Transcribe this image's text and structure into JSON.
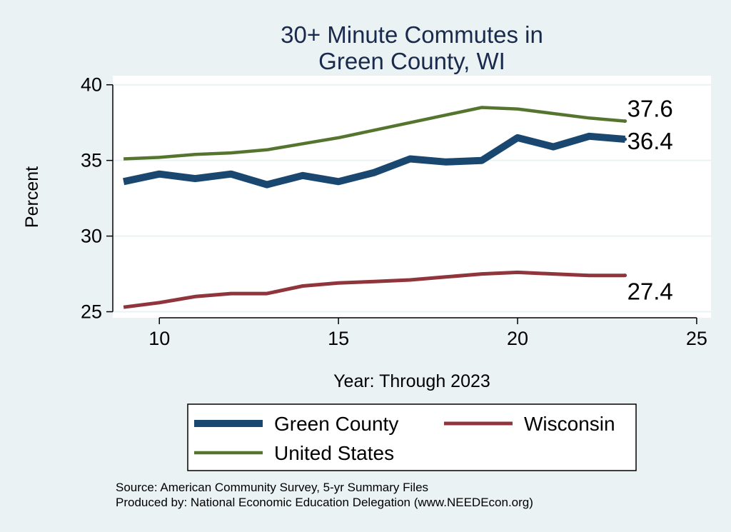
{
  "chart_data": {
    "type": "line",
    "title": [
      "30+ Minute Commutes in",
      "Green County, WI"
    ],
    "xlabel": "Year: Through 2023",
    "ylabel": "Percent",
    "xlim": [
      8.7,
      25.4
    ],
    "ylim": [
      24.6,
      40.6
    ],
    "xticks": [
      10,
      15,
      20,
      25
    ],
    "yticks": [
      25,
      30,
      35,
      40
    ],
    "grid": true,
    "legend_position": "bottom",
    "series": [
      {
        "name": "Green County",
        "color": "#1a476f",
        "x": [
          9,
          10,
          11,
          12,
          13,
          14,
          15,
          16,
          17,
          18,
          19,
          20,
          21,
          22,
          23
        ],
        "y": [
          33.6,
          34.1,
          33.8,
          34.1,
          33.4,
          34.0,
          33.6,
          34.2,
          35.1,
          34.9,
          35.0,
          36.5,
          35.9,
          36.6,
          36.4
        ],
        "end_label": "36.4"
      },
      {
        "name": "Wisconsin",
        "color": "#90353b",
        "x": [
          9,
          10,
          11,
          12,
          13,
          14,
          15,
          16,
          17,
          18,
          19,
          20,
          21,
          22,
          23
        ],
        "y": [
          25.3,
          25.6,
          26.0,
          26.2,
          26.2,
          26.7,
          26.9,
          27.0,
          27.1,
          27.3,
          27.5,
          27.6,
          27.5,
          27.4,
          27.4
        ],
        "end_label": "27.4"
      },
      {
        "name": "United States",
        "color": "#55752f",
        "x": [
          9,
          10,
          11,
          12,
          13,
          14,
          15,
          16,
          17,
          18,
          19,
          20,
          21,
          22,
          23
        ],
        "y": [
          35.1,
          35.2,
          35.4,
          35.5,
          35.7,
          36.1,
          36.5,
          37.0,
          37.5,
          38.0,
          38.5,
          38.4,
          38.1,
          37.8,
          37.6
        ],
        "end_label": "37.6"
      }
    ],
    "notes": [
      "Source: American Community Survey, 5-yr Summary Files",
      "Produced by: National Economic Education Delegation (www.NEEDEcon.org)"
    ]
  }
}
